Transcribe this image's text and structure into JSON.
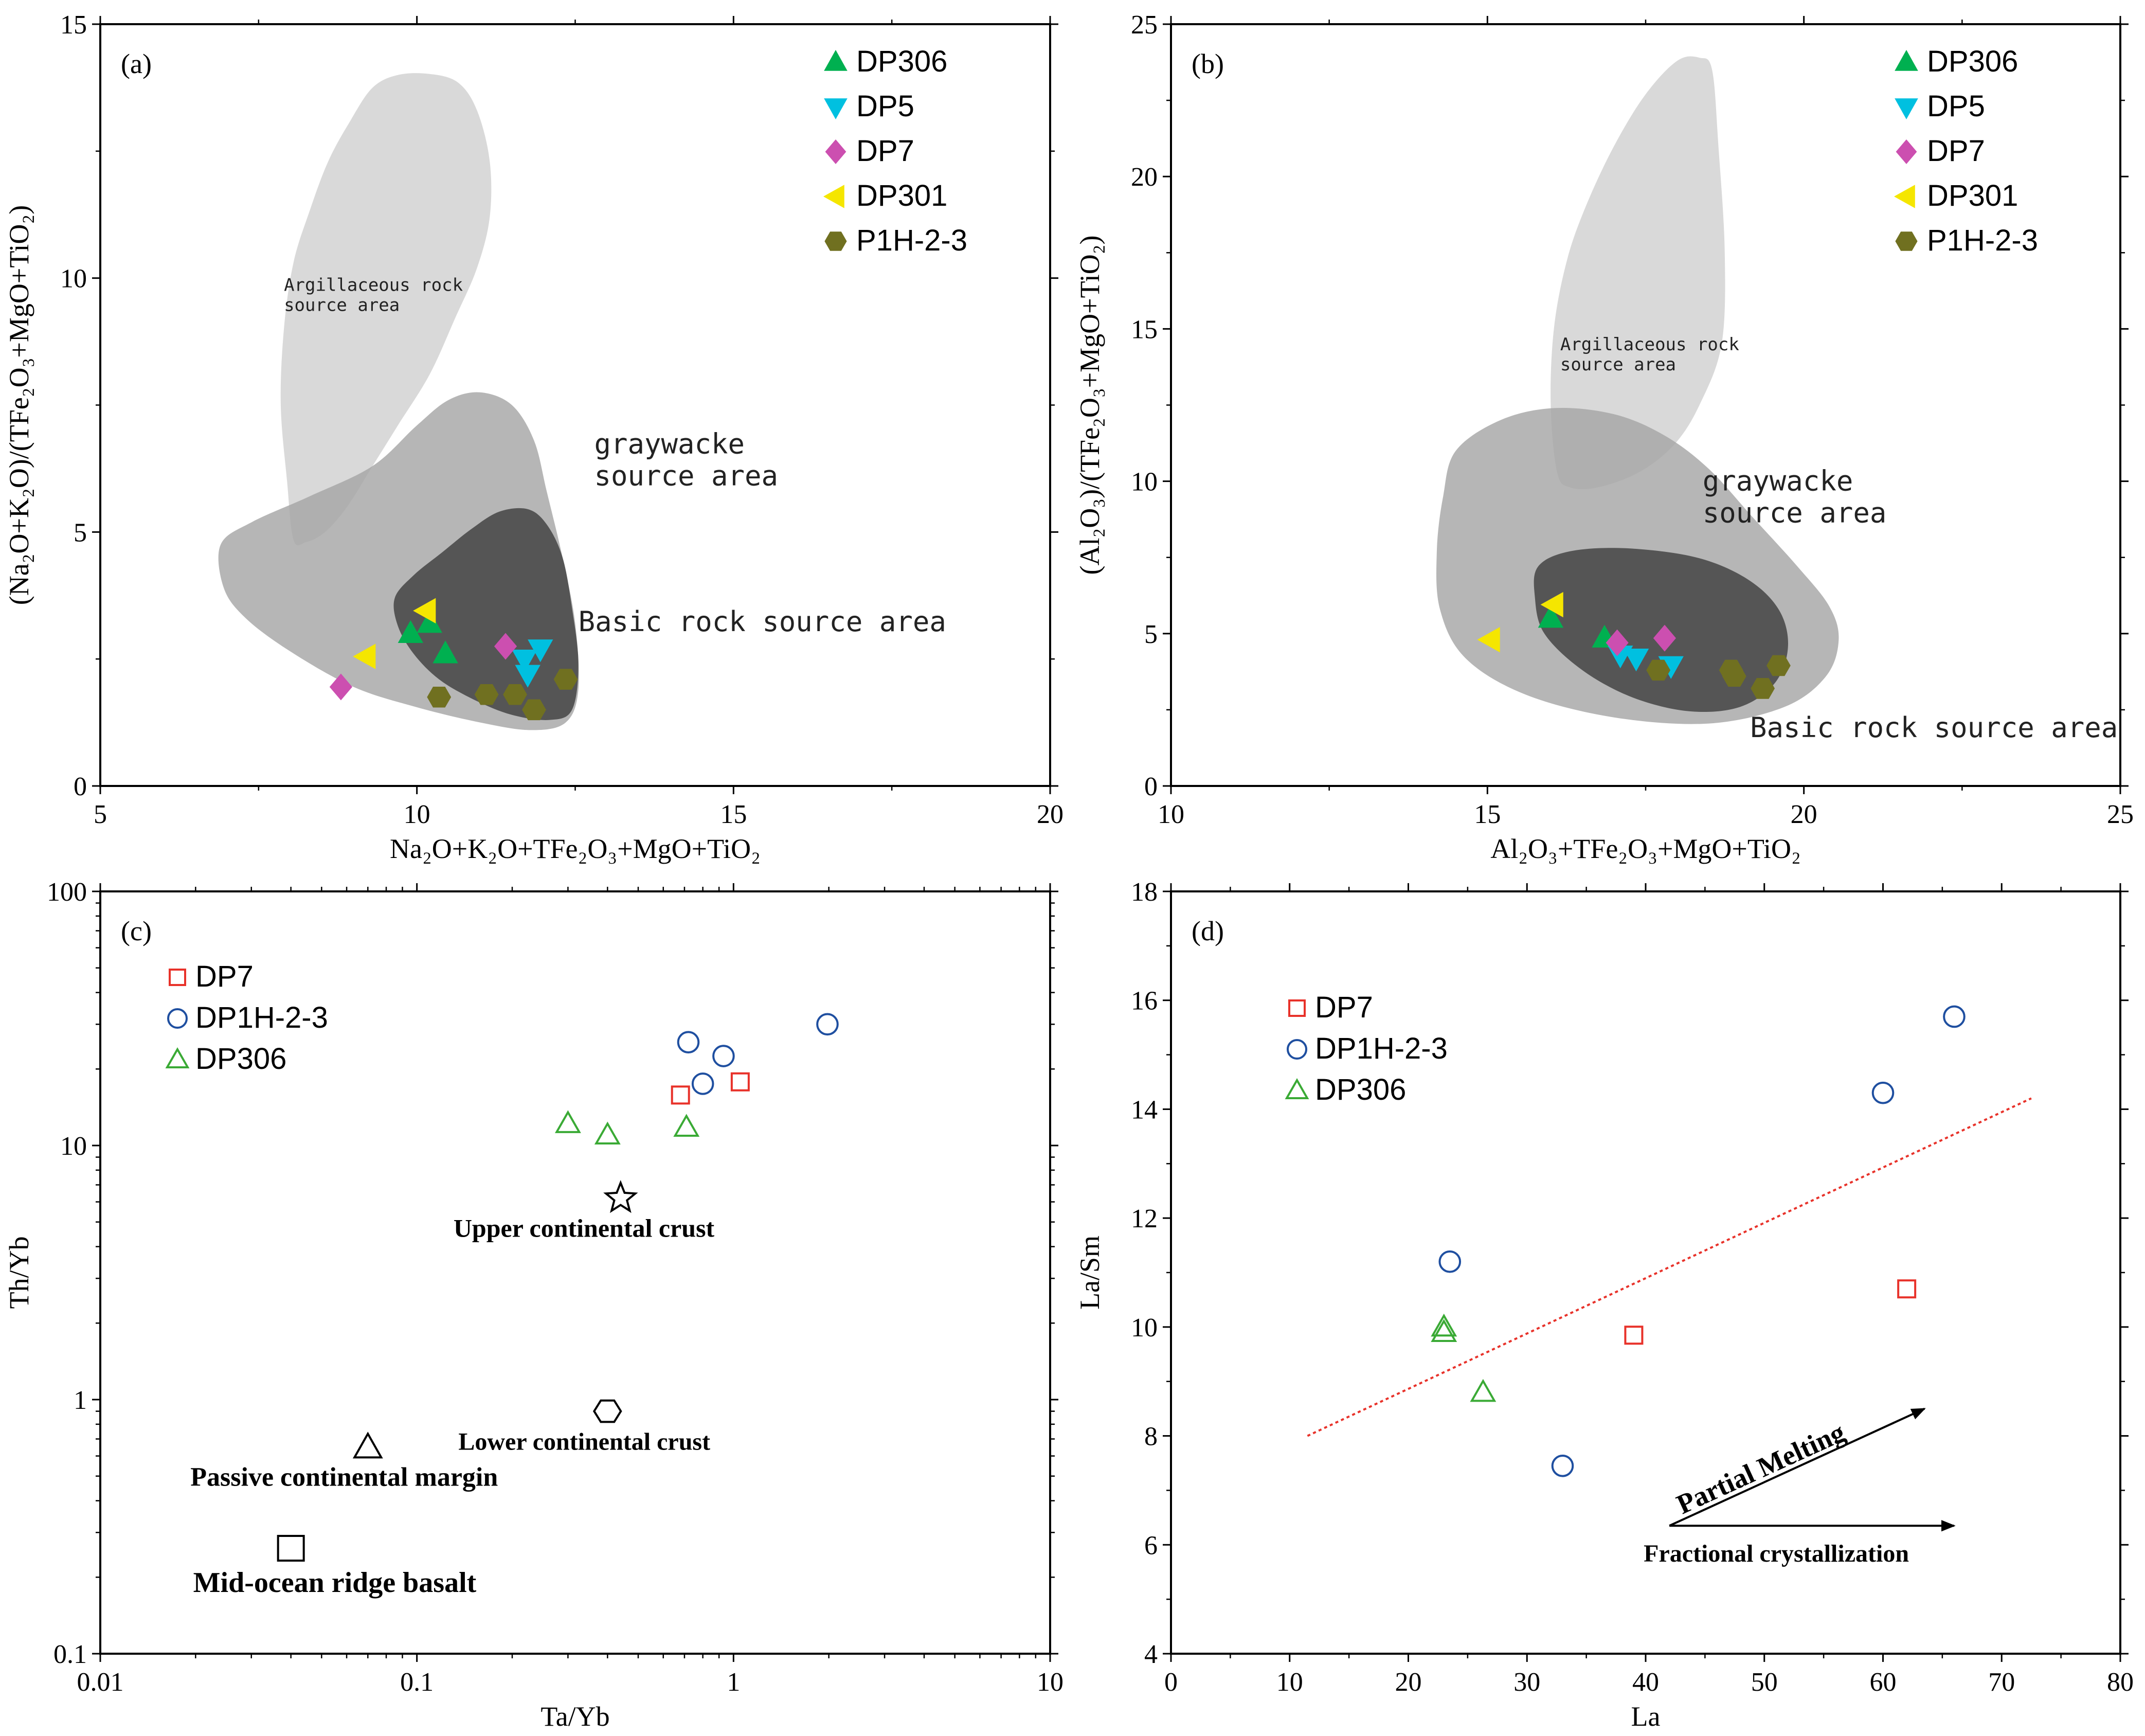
{
  "chart_data": [
    {
      "panel": "(a)",
      "type": "scatter",
      "xlabel": "Na₂O+K₂O+TFe₂O₃+MgO+TiO₂",
      "ylabel": "(Na₂O+K₂O)/(TFe₂O₃+MgO+TiO₂)",
      "xlim": [
        5,
        20
      ],
      "ylim": [
        0,
        15
      ],
      "xticks": [
        5,
        10,
        15,
        20
      ],
      "yticks": [
        0,
        5,
        10,
        15
      ],
      "grid": false,
      "legend_position": "top-right",
      "regions": [
        {
          "label": "Argillaceous rock source area",
          "lines": [
            "Argillaceous rock",
            "source area"
          ],
          "fill": "#d9d9d9"
        },
        {
          "label": "graywacke source area",
          "lines": [
            "graywacke",
            "source area"
          ],
          "fill": "#a6a6a6"
        },
        {
          "label": "Basic rock source area",
          "lines": [
            "Basic rock source area"
          ],
          "fill": "#505050"
        }
      ],
      "series": [
        {
          "name": "DP306",
          "marker": "triangle-up",
          "color": "#00b050",
          "points": [
            [
              9.9,
              3.0
            ],
            [
              10.2,
              3.2
            ],
            [
              10.45,
              2.6
            ]
          ]
        },
        {
          "name": "DP5",
          "marker": "triangle-down",
          "color": "#00c0e0",
          "points": [
            [
              11.95,
              2.7
            ],
            [
              11.7,
              2.5
            ],
            [
              11.75,
              2.2
            ]
          ]
        },
        {
          "name": "DP7",
          "marker": "diamond",
          "color": "#cc4fb0",
          "points": [
            [
              8.8,
              1.95
            ],
            [
              11.4,
              2.75
            ]
          ]
        },
        {
          "name": "DP301",
          "marker": "triangle-left",
          "color": "#f5e600",
          "points": [
            [
              9.2,
              2.55
            ],
            [
              10.15,
              3.45
            ]
          ]
        },
        {
          "name": "P1H-2-3",
          "marker": "hexagon",
          "color": "#707020",
          "points": [
            [
              10.35,
              1.75
            ],
            [
              11.1,
              1.8
            ],
            [
              11.55,
              1.8
            ],
            [
              11.85,
              1.5
            ],
            [
              12.35,
              2.1
            ]
          ]
        }
      ]
    },
    {
      "panel": "(b)",
      "type": "scatter",
      "xlabel": "Al₂O₃+TFe₂O₃+MgO+TiO₂",
      "ylabel": "(Al₂O₃)/(TFe₂O₃+MgO+TiO₂)",
      "xlim": [
        10,
        25
      ],
      "ylim": [
        0,
        25
      ],
      "xticks": [
        10,
        15,
        20,
        25
      ],
      "yticks": [
        0,
        5,
        10,
        15,
        20,
        25
      ],
      "grid": false,
      "legend_position": "top-right",
      "regions": [
        {
          "label": "Argillaceous rock source area",
          "lines": [
            "Argillaceous rock",
            "source area"
          ],
          "fill": "#d9d9d9"
        },
        {
          "label": "graywacke source area",
          "lines": [
            "graywacke",
            "source area"
          ],
          "fill": "#a6a6a6"
        },
        {
          "label": "Basic rock source area",
          "lines": [
            "Basic rock source area"
          ],
          "fill": "#505050"
        }
      ],
      "series": [
        {
          "name": "DP306",
          "marker": "triangle-up",
          "color": "#00b050",
          "points": [
            [
              16.0,
              5.5
            ],
            [
              16.85,
              4.85
            ]
          ]
        },
        {
          "name": "DP5",
          "marker": "triangle-down",
          "color": "#00c0e0",
          "points": [
            [
              17.1,
              4.3
            ],
            [
              17.35,
              4.2
            ],
            [
              17.9,
              3.95
            ]
          ]
        },
        {
          "name": "DP7",
          "marker": "diamond",
          "color": "#cc4fb0",
          "points": [
            [
              17.05,
              4.7
            ],
            [
              17.8,
              4.85
            ]
          ]
        },
        {
          "name": "DP301",
          "marker": "triangle-left",
          "color": "#f5e600",
          "points": [
            [
              15.05,
              4.8
            ],
            [
              16.05,
              5.95
            ]
          ]
        },
        {
          "name": "P1H-2-3",
          "marker": "hexagon",
          "color": "#707020",
          "points": [
            [
              17.7,
              3.8
            ],
            [
              18.85,
              3.8
            ],
            [
              18.9,
              3.6
            ],
            [
              19.35,
              3.2
            ],
            [
              19.6,
              3.95
            ]
          ]
        }
      ]
    },
    {
      "panel": "(c)",
      "type": "scatter",
      "xlabel": "Ta/Yb",
      "ylabel": "Th/Yb",
      "x_scale": "log",
      "y_scale": "log",
      "xlim": [
        0.01,
        10
      ],
      "ylim": [
        0.1,
        100
      ],
      "xticks": [
        0.01,
        0.1,
        1,
        10
      ],
      "xtick_labels": [
        "0.01",
        "0.1",
        "1",
        "10"
      ],
      "yticks": [
        0.1,
        1,
        10,
        100
      ],
      "ytick_labels": [
        "0.1",
        "1",
        "10",
        "100"
      ],
      "grid": false,
      "legend_position": "top-left",
      "series": [
        {
          "name": "DP7",
          "marker": "square-open",
          "color": "#e8322a",
          "points": [
            [
              0.68,
              15.8
            ],
            [
              1.05,
              17.8
            ]
          ]
        },
        {
          "name": "DP1H-2-3",
          "marker": "circle-open",
          "color": "#1f4fa0",
          "points": [
            [
              0.72,
              25.5
            ],
            [
              0.8,
              17.5
            ],
            [
              0.93,
              22.5
            ],
            [
              1.98,
              30.0
            ]
          ]
        },
        {
          "name": "DP306",
          "marker": "triangle-open",
          "color": "#3aaa35",
          "points": [
            [
              0.3,
              12.2
            ],
            [
              0.4,
              11.0
            ],
            [
              0.71,
              11.8
            ]
          ]
        }
      ],
      "reference_points": [
        {
          "label": "Upper continental crust",
          "marker": "star",
          "x": 0.44,
          "y": 6.2
        },
        {
          "label": "Lower continental crust",
          "marker": "hexagon",
          "x": 0.4,
          "y": 0.9
        },
        {
          "label": "Passive continental margin",
          "marker": "triangle",
          "x": 0.07,
          "y": 0.65
        },
        {
          "label": "Mid-ocean ridge basalt",
          "marker": "square",
          "x": 0.04,
          "y": 0.26
        }
      ]
    },
    {
      "panel": "(d)",
      "type": "scatter",
      "xlabel": "La",
      "ylabel": "La/Sm",
      "xlim": [
        0,
        80
      ],
      "ylim": [
        4,
        18
      ],
      "xticks": [
        0,
        10,
        20,
        30,
        40,
        50,
        60,
        70,
        80
      ],
      "yticks": [
        4,
        6,
        8,
        10,
        12,
        14,
        16,
        18
      ],
      "grid": false,
      "legend_position": "top-left",
      "series": [
        {
          "name": "DP7",
          "marker": "square-open",
          "color": "#e8322a",
          "points": [
            [
              39.0,
              9.85
            ],
            [
              62.0,
              10.7
            ]
          ]
        },
        {
          "name": "DP1H-2-3",
          "marker": "circle-open",
          "color": "#1f4fa0",
          "points": [
            [
              23.5,
              11.2
            ],
            [
              33.0,
              7.45
            ],
            [
              60.0,
              14.3
            ],
            [
              66.0,
              15.7
            ]
          ]
        },
        {
          "name": "DP306",
          "marker": "triangle-open",
          "color": "#3aaa35",
          "points": [
            [
              23.0,
              10.0
            ],
            [
              23.0,
              9.9
            ],
            [
              26.3,
              8.8
            ]
          ]
        }
      ],
      "trend_line": {
        "color": "#e8322a",
        "dash": "dotted",
        "points": [
          [
            11.5,
            8.0
          ],
          [
            72.5,
            14.2
          ]
        ]
      },
      "arrows": [
        {
          "label": "Partial Melting",
          "from": [
            42.0,
            6.35
          ],
          "to": [
            63.5,
            8.5
          ]
        },
        {
          "label": "Fractional crystallization",
          "from": [
            42.0,
            6.35
          ],
          "to": [
            66.0,
            6.35
          ]
        }
      ]
    }
  ]
}
